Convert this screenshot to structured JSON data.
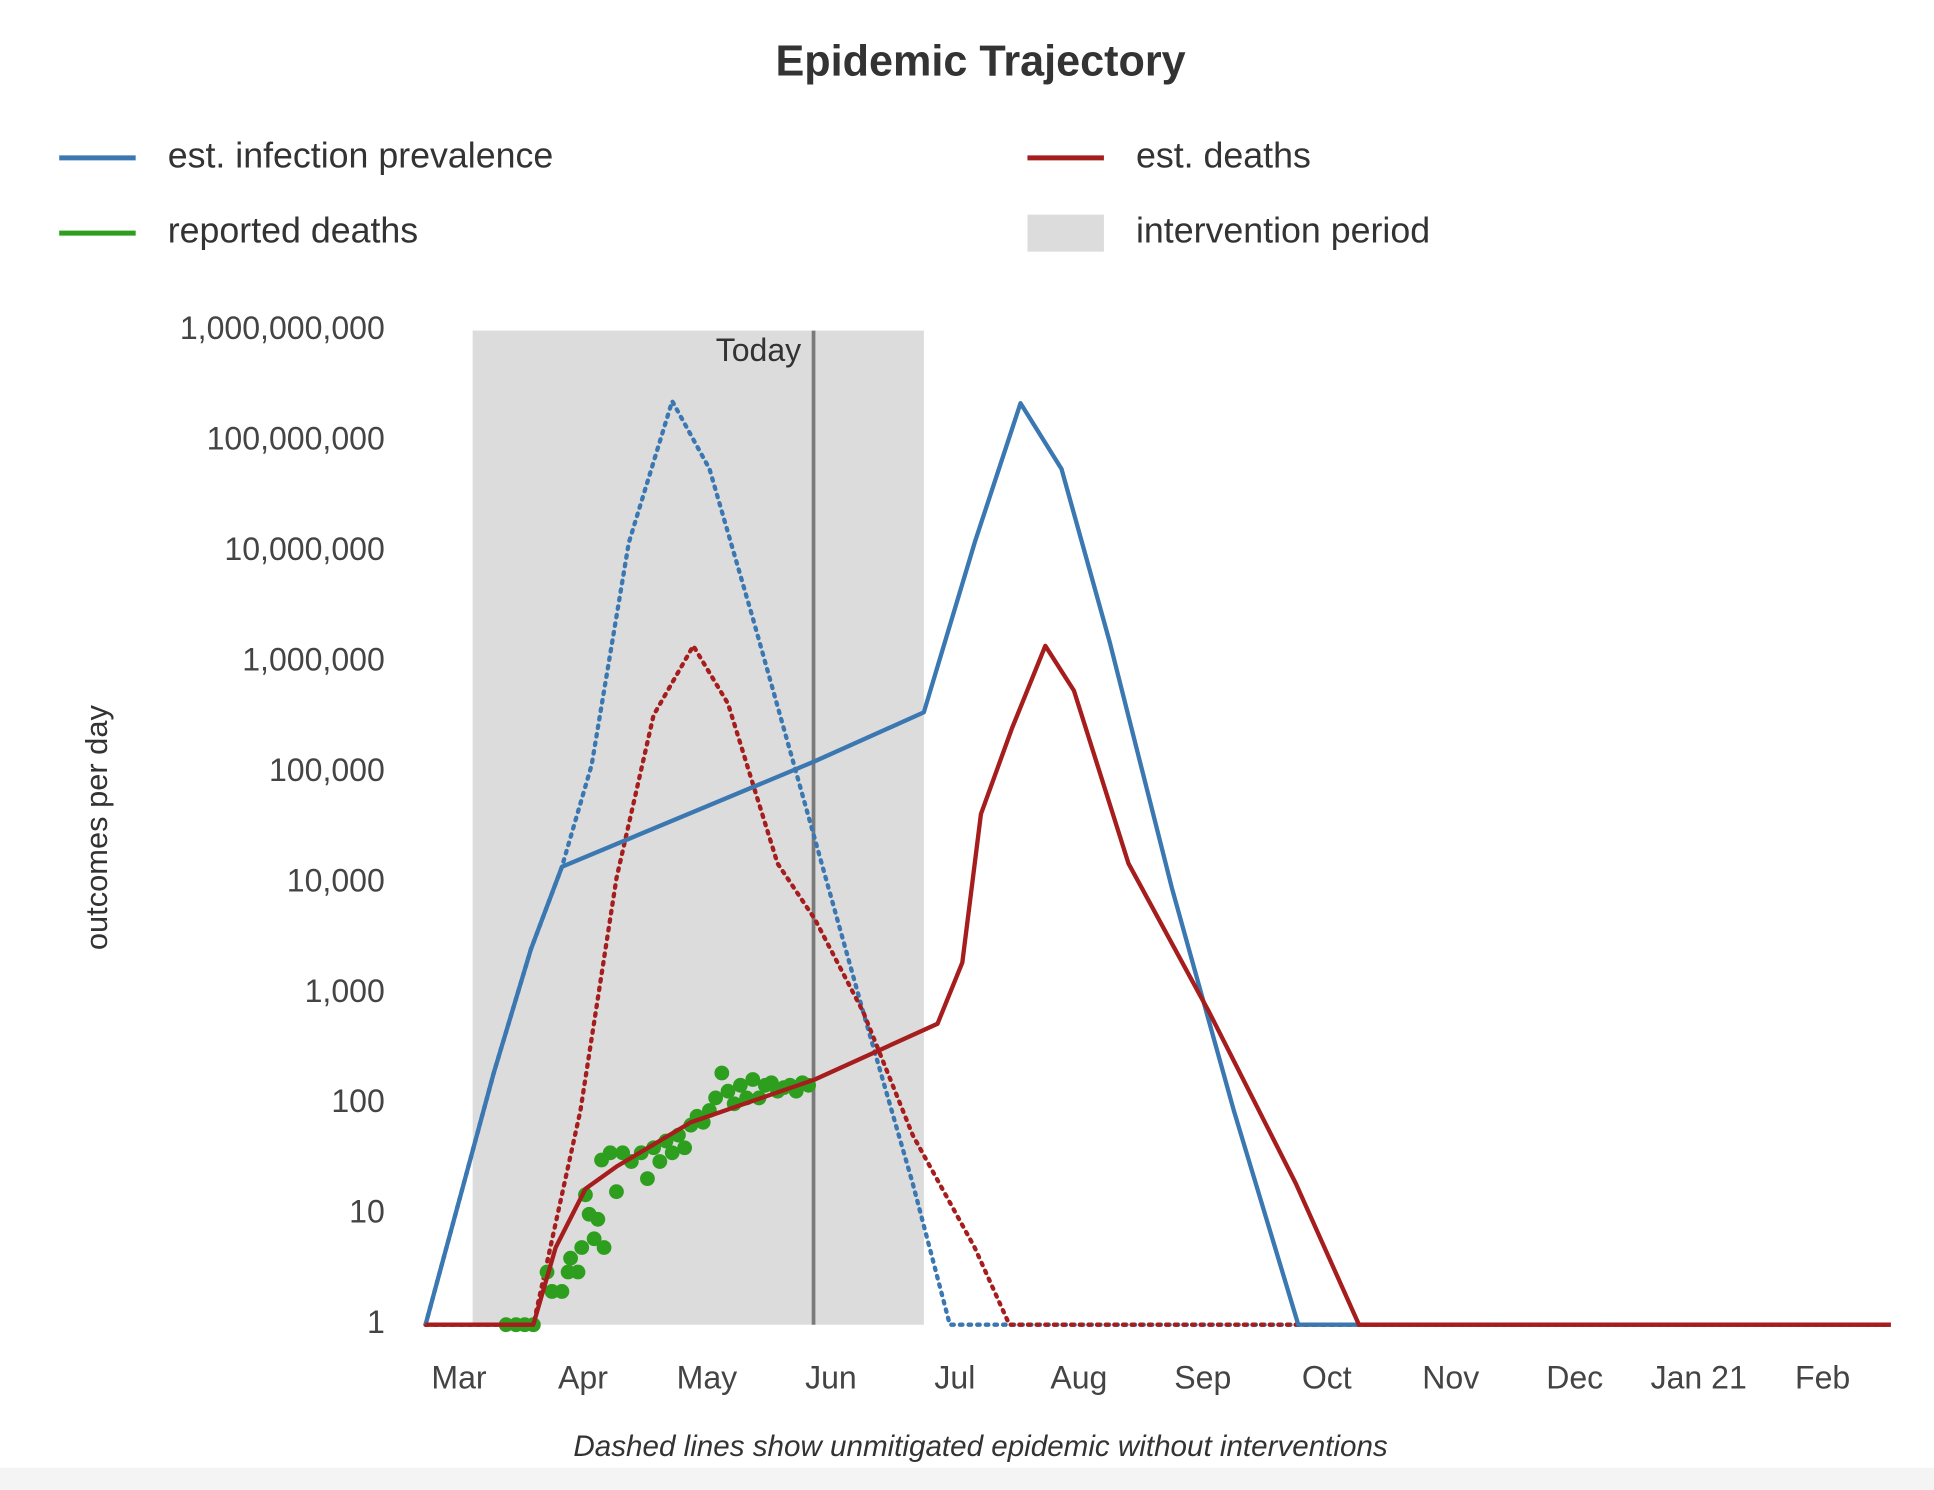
{
  "chart_data": {
    "type": "line",
    "title": "Epidemic Trajectory",
    "y_label": "outcomes per day",
    "note": "Dashed lines show unmitigated epidemic without interventions",
    "ylog": true,
    "ylim": [
      1,
      1000000000
    ],
    "yticks": [
      1,
      10,
      100,
      {
        "value": 1000,
        "label": "1,000"
      },
      {
        "value": 10000,
        "label": "10,000"
      },
      {
        "value": 100000,
        "label": "100,000"
      },
      {
        "value": 1000000,
        "label": "1,000,000"
      },
      {
        "value": 10000000,
        "label": "10,000,000"
      },
      {
        "value": 100000000,
        "label": "100,000,000"
      },
      {
        "value": 1000000000,
        "label": "1,000,000,000"
      }
    ],
    "xlim": [
      -0.27,
      11.55
    ],
    "xticks": [
      {
        "value": 0,
        "label": "Mar"
      },
      {
        "value": 1,
        "label": "Apr"
      },
      {
        "value": 2,
        "label": "May"
      },
      {
        "value": 3,
        "label": "Jun"
      },
      {
        "value": 4,
        "label": "Jul"
      },
      {
        "value": 5,
        "label": "Aug"
      },
      {
        "value": 6,
        "label": "Sep"
      },
      {
        "value": 7,
        "label": "Oct"
      },
      {
        "value": 8,
        "label": "Nov"
      },
      {
        "value": 9,
        "label": "Dec"
      },
      {
        "value": 10,
        "label": "Jan 21"
      },
      {
        "value": 11,
        "label": "Feb"
      }
    ],
    "shaded_region": {
      "name": "intervention period",
      "color": "#dcdcdc",
      "x": [
        0.11,
        3.75
      ]
    },
    "reference_line": {
      "label": "Today",
      "x": 2.86,
      "color": "#7a7a7a"
    },
    "series": [
      {
        "name": "est. infection prevalence",
        "color": "#3b78b1",
        "style": "solid",
        "x": [
          -0.27,
          0.28,
          0.58,
          0.83,
          2.87,
          3.75,
          4.16,
          4.53,
          4.86,
          5.25,
          5.75,
          6.25,
          6.77,
          11.55
        ],
        "values": [
          1,
          190,
          2500,
          14000,
          126000,
          350000,
          12000000,
          220000000,
          56000000,
          1500000,
          9000,
          87,
          1,
          1
        ]
      },
      {
        "name": "est. deaths",
        "color": "#a51d1d",
        "style": "solid",
        "x": [
          -0.27,
          0.6,
          0.78,
          1.02,
          1.27,
          1.87,
          2.87,
          3.86,
          4.06,
          4.21,
          4.46,
          4.73,
          4.96,
          5.4,
          6.05,
          6.75,
          7.26,
          11.55
        ],
        "values": [
          1,
          1,
          5,
          17,
          27,
          68,
          166,
          530,
          1900,
          42000,
          250000,
          1400000,
          550000,
          15000,
          680,
          19,
          1,
          1
        ]
      },
      {
        "name": "reported deaths",
        "color": "#2e9e1e",
        "style": "scatter",
        "x": [
          0.38,
          0.46,
          0.53,
          0.6,
          0.71,
          0.75,
          0.83,
          0.88,
          0.9,
          0.96,
          0.99,
          1.02,
          1.05,
          1.09,
          1.12,
          1.17,
          1.15,
          1.22,
          1.27,
          1.32,
          1.39,
          1.47,
          1.52,
          1.57,
          1.62,
          1.67,
          1.72,
          1.77,
          1.82,
          1.87,
          1.92,
          1.97,
          2.02,
          2.07,
          2.12,
          2.17,
          2.22,
          2.27,
          2.32,
          2.37,
          2.42,
          2.47,
          2.52,
          2.57,
          2.62,
          2.67,
          2.72,
          2.77,
          2.82
        ],
        "values": [
          1,
          1,
          1,
          1,
          3,
          2,
          2,
          3,
          4,
          3,
          5,
          15,
          10,
          6,
          9,
          5,
          31,
          36,
          16,
          36,
          30,
          36,
          21,
          40,
          30,
          46,
          36,
          52,
          40,
          64,
          77,
          68,
          87,
          113,
          190,
          130,
          100,
          147,
          113,
          166,
          113,
          147,
          155,
          130,
          140,
          147,
          130,
          155,
          147
        ]
      },
      {
        "color": "#3b78b1",
        "style": "dotted",
        "x": [
          -0.27,
          0.28,
          0.58,
          0.83,
          1.07,
          1.37,
          1.72,
          2.02,
          2.37,
          2.87,
          3.26,
          3.66,
          3.96,
          11.55
        ],
        "values": [
          1,
          190,
          2500,
          14000,
          117000,
          12000000,
          230000000,
          56000000,
          2500000,
          25000,
          680,
          19,
          1,
          1
        ]
      },
      {
        "color": "#a51d1d",
        "style": "dotted",
        "x": [
          -0.27,
          0.6,
          0.98,
          1.27,
          1.57,
          1.89,
          2.17,
          2.57,
          2.87,
          3.26,
          3.66,
          4.16,
          4.44,
          11.55
        ],
        "values": [
          1,
          1,
          87,
          11000,
          330000,
          1400000,
          420000,
          15000,
          4700,
          680,
          52,
          5,
          1,
          1
        ]
      }
    ]
  }
}
